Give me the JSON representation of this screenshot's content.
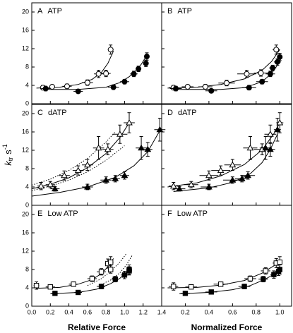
{
  "chart_data": [
    {
      "type": "scatter",
      "panel": "A",
      "title": "ATP",
      "xlim": [
        0,
        1.4
      ],
      "ylim": [
        0,
        22
      ],
      "yticks": [
        0,
        4,
        8,
        12,
        16,
        20
      ],
      "series": [
        {
          "marker": "circle",
          "filled": false,
          "x": [
            0.12,
            0.22,
            0.38,
            0.6,
            0.72,
            0.8,
            0.85
          ],
          "values": [
            3.5,
            3.7,
            3.8,
            4.6,
            6.5,
            6.6,
            11.8
          ],
          "xerr": [
            0.03,
            0.03,
            0.05,
            0.06,
            0.05,
            0.05,
            0.03
          ],
          "yerr": [
            0.5,
            0.4,
            0.5,
            0.6,
            0.8,
            0.7,
            1.0
          ]
        },
        {
          "marker": "circle",
          "filled": true,
          "x": [
            0.15,
            0.5,
            0.88,
            1.0,
            1.1,
            1.15,
            1.23,
            1.24
          ],
          "values": [
            3.3,
            2.7,
            3.6,
            4.8,
            6.5,
            7.6,
            8.8,
            10.3
          ],
          "xerr": [
            0.05,
            0.05,
            0.06,
            0.05,
            0.04,
            0.03,
            0.03,
            0.03
          ],
          "yerr": [
            0.5,
            0.4,
            0.5,
            0.5,
            0.6,
            0.6,
            0.7,
            0.8
          ]
        }
      ],
      "fits": [
        {
          "style": "solid",
          "x": [
            0.05,
            0.3,
            0.5,
            0.65,
            0.75,
            0.82,
            0.88
          ],
          "values": [
            3.4,
            3.6,
            4.2,
            5.3,
            6.8,
            8.8,
            11.5
          ]
        },
        {
          "style": "solid",
          "x": [
            0.1,
            0.5,
            0.8,
            0.95,
            1.05,
            1.12,
            1.18,
            1.24
          ],
          "values": [
            3.1,
            3.1,
            3.6,
            4.6,
            5.9,
            7.2,
            8.6,
            10.6
          ]
        }
      ]
    },
    {
      "type": "scatter",
      "panel": "B",
      "title": "ATP",
      "xlim": [
        0,
        1.1
      ],
      "ylim": [
        0,
        22
      ],
      "series": [
        {
          "marker": "circle",
          "filled": false,
          "x": [
            0.1,
            0.22,
            0.37,
            0.55,
            0.72,
            0.84,
            0.97
          ],
          "values": [
            3.5,
            3.7,
            3.7,
            4.5,
            6.5,
            6.7,
            11.8
          ],
          "xerr": [
            0.04,
            0.05,
            0.06,
            0.07,
            0.08,
            0.06,
            0.03
          ],
          "yerr": [
            0.5,
            0.4,
            0.5,
            0.6,
            0.8,
            0.7,
            1.0
          ]
        },
        {
          "marker": "circle",
          "filled": true,
          "x": [
            0.12,
            0.42,
            0.74,
            0.85,
            0.92,
            0.94,
            0.98,
            1.0
          ],
          "values": [
            3.3,
            2.8,
            3.5,
            4.8,
            6.5,
            7.8,
            9.1,
            10.2
          ],
          "xerr": [
            0.05,
            0.05,
            0.06,
            0.05,
            0.04,
            0.03,
            0.03,
            0.02
          ],
          "yerr": [
            0.5,
            0.4,
            0.5,
            0.5,
            0.6,
            0.6,
            0.7,
            0.8
          ]
        }
      ],
      "fits": [
        {
          "style": "solid",
          "x": [
            0.05,
            0.3,
            0.5,
            0.7,
            0.85,
            0.93,
            1.0
          ],
          "values": [
            3.4,
            3.6,
            4.2,
            5.4,
            7.3,
            9.2,
            11.8
          ]
        },
        {
          "style": "solid",
          "x": [
            0.1,
            0.5,
            0.7,
            0.85,
            0.93,
            0.98,
            1.02
          ],
          "values": [
            3.1,
            3.1,
            3.5,
            4.8,
            6.6,
            8.4,
            10.3
          ]
        }
      ]
    },
    {
      "type": "scatter",
      "panel": "C",
      "title": "dATP",
      "xlim": [
        0,
        1.4
      ],
      "ylim": [
        0,
        22
      ],
      "yticks": [
        0,
        4,
        8,
        12,
        16,
        20
      ],
      "ylabel": {
        "symbol": "k",
        "subscript": "tr",
        "unit": "s",
        "superscript": "-1"
      },
      "series": [
        {
          "marker": "triangle",
          "filled": false,
          "x": [
            0.1,
            0.2,
            0.35,
            0.5,
            0.6,
            0.72,
            0.82,
            0.95,
            1.05
          ],
          "values": [
            4.2,
            4.5,
            6.5,
            7.6,
            8.8,
            12.5,
            12.2,
            15.5,
            18.0
          ],
          "xerr": [
            0.04,
            0.05,
            0.06,
            0.06,
            0.06,
            0.06,
            0.06,
            0.08,
            0.06
          ],
          "yerr": [
            0.8,
            0.7,
            1.0,
            1.0,
            1.2,
            2.5,
            1.2,
            2.0,
            2.2
          ]
        },
        {
          "marker": "triangle",
          "filled": true,
          "x": [
            0.25,
            0.6,
            0.8,
            0.9,
            1.0,
            1.18,
            1.25,
            1.38
          ],
          "values": [
            3.6,
            4.0,
            5.5,
            5.8,
            6.5,
            12.5,
            12.2,
            16.5
          ],
          "xerr": [
            0.05,
            0.06,
            0.06,
            0.05,
            0.05,
            0.06,
            0.05,
            0.06
          ],
          "yerr": [
            0.5,
            0.6,
            0.7,
            0.7,
            0.8,
            2.5,
            1.5,
            2.5
          ]
        }
      ],
      "fits": [
        {
          "style": "solid",
          "x": [
            0,
            0.2,
            0.4,
            0.6,
            0.8,
            0.95,
            1.05
          ],
          "values": [
            3.6,
            4.6,
            6.0,
            8.2,
            11.3,
            14.8,
            18.0
          ]
        },
        {
          "style": "solid",
          "x": [
            0,
            0.3,
            0.6,
            0.9,
            1.1,
            1.25,
            1.38
          ],
          "values": [
            2.0,
            2.8,
            4.0,
            6.1,
            8.6,
            11.7,
            16.3
          ]
        },
        {
          "style": "dotted",
          "x": [
            0,
            0.2,
            0.4,
            0.6,
            0.8,
            0.9
          ],
          "values": [
            4.4,
            5.7,
            7.6,
            10.2,
            13.8,
            16.0
          ]
        },
        {
          "style": "dotted",
          "x": [
            0,
            0.2,
            0.4,
            0.6,
            0.8,
            1.0
          ],
          "values": [
            3.2,
            4.2,
            5.5,
            7.3,
            9.8,
            13.0
          ]
        }
      ]
    },
    {
      "type": "scatter",
      "panel": "D",
      "title": "dATP",
      "xlim": [
        0,
        1.1
      ],
      "ylim": [
        0,
        22
      ],
      "series": [
        {
          "marker": "triangle",
          "filled": false,
          "x": [
            0.1,
            0.25,
            0.4,
            0.5,
            0.6,
            0.75,
            0.85,
            0.92,
            1.0
          ],
          "values": [
            4.2,
            4.5,
            6.5,
            7.6,
            8.8,
            12.5,
            12.2,
            15.5,
            18.0
          ],
          "xerr": [
            0.04,
            0.06,
            0.08,
            0.08,
            0.07,
            0.06,
            0.07,
            0.05,
            0.03
          ],
          "yerr": [
            0.8,
            0.7,
            1.0,
            1.0,
            1.2,
            2.5,
            1.2,
            2.0,
            2.2
          ]
        },
        {
          "marker": "triangle",
          "filled": true,
          "x": [
            0.15,
            0.4,
            0.6,
            0.68,
            0.73,
            0.88,
            0.92,
            0.98
          ],
          "values": [
            3.6,
            4.0,
            5.5,
            5.8,
            6.5,
            12.5,
            12.2,
            16.5
          ],
          "xerr": [
            0.05,
            0.07,
            0.08,
            0.06,
            0.06,
            0.05,
            0.04,
            0.03
          ],
          "yerr": [
            0.5,
            0.6,
            0.7,
            0.7,
            0.8,
            2.5,
            1.5,
            2.5
          ]
        }
      ],
      "fits": [
        {
          "style": "solid",
          "x": [
            0.05,
            0.3,
            0.5,
            0.7,
            0.85,
            0.95,
            1.0
          ],
          "values": [
            4.0,
            4.9,
            6.4,
            8.9,
            12.1,
            15.6,
            18.0
          ]
        },
        {
          "style": "solid",
          "x": [
            0.1,
            0.4,
            0.6,
            0.75,
            0.85,
            0.92,
            0.98
          ],
          "values": [
            3.0,
            3.8,
            5.0,
            6.9,
            9.3,
            12.2,
            15.5
          ]
        }
      ]
    },
    {
      "type": "scatter",
      "panel": "E",
      "title": "Low ATP",
      "xlim": [
        0,
        1.4
      ],
      "ylim": [
        0,
        22
      ],
      "yticks": [
        0,
        4,
        8,
        12,
        16,
        20
      ],
      "xticks": [
        {
          "value": 0,
          "label": "0.0"
        },
        0.2,
        0.4,
        0.6,
        0.8,
        {
          "value": 1,
          "label": "1.0"
        },
        1.2,
        1.4
      ],
      "xlabel": "Relative Force",
      "series": [
        {
          "marker": "square",
          "filled": false,
          "x": [
            0.05,
            0.2,
            0.45,
            0.65,
            0.75,
            0.82,
            0.85,
            0.85
          ],
          "values": [
            4.5,
            4.2,
            4.8,
            6.0,
            7.5,
            9.3,
            9.6,
            8.0
          ],
          "xerr": [
            0.03,
            0.05,
            0.05,
            0.05,
            0.05,
            0.03,
            0.03,
            0.03
          ],
          "yerr": [
            0.8,
            0.4,
            0.5,
            0.6,
            0.7,
            1.0,
            1.2,
            0.8
          ]
        },
        {
          "marker": "square",
          "filled": true,
          "x": [
            0.25,
            0.5,
            0.75,
            0.9,
            1.0,
            1.05,
            1.05
          ],
          "values": [
            2.8,
            3.0,
            4.3,
            5.9,
            6.8,
            7.7,
            8.0
          ],
          "xerr": [
            0.04,
            0.04,
            0.04,
            0.04,
            0.04,
            0.03,
            0.03
          ],
          "yerr": [
            0.4,
            0.4,
            0.5,
            0.6,
            0.8,
            0.9,
            1.0
          ]
        }
      ],
      "fits": [
        {
          "style": "solid",
          "x": [
            0.05,
            0.3,
            0.5,
            0.65,
            0.75,
            0.82,
            0.88
          ],
          "values": [
            3.9,
            4.1,
            4.8,
            5.8,
            7.1,
            8.6,
            10.4
          ]
        },
        {
          "style": "solid",
          "x": [
            0.2,
            0.5,
            0.7,
            0.85,
            0.95,
            1.02,
            1.06
          ],
          "values": [
            2.7,
            3.0,
            3.7,
            4.9,
            6.1,
            7.4,
            8.4
          ]
        },
        {
          "style": "dotted",
          "x": [
            0.6,
            0.75,
            0.85,
            0.95,
            1.02
          ],
          "values": [
            4.5,
            6.0,
            7.6,
            9.6,
            11.5
          ]
        },
        {
          "style": "dotted",
          "x": [
            0.7,
            0.85,
            0.95,
            1.02,
            1.08
          ],
          "values": [
            4.3,
            5.7,
            7.3,
            9.0,
            11.0
          ]
        }
      ]
    },
    {
      "type": "scatter",
      "panel": "F",
      "title": "Low ATP",
      "xlim": [
        0,
        1.1
      ],
      "ylim": [
        0,
        22
      ],
      "xticks": [
        0.2,
        0.4,
        0.6,
        0.8,
        {
          "value": 1,
          "label": "1.0"
        }
      ],
      "xlabel": "Normalized Force",
      "series": [
        {
          "marker": "square",
          "filled": false,
          "x": [
            0.1,
            0.25,
            0.5,
            0.75,
            0.88,
            0.97,
            1.0
          ],
          "values": [
            4.3,
            4.2,
            4.8,
            6.0,
            7.7,
            9.4,
            9.6
          ],
          "xerr": [
            0.04,
            0.05,
            0.06,
            0.05,
            0.04,
            0.03,
            0.02
          ],
          "yerr": [
            0.8,
            0.4,
            0.5,
            0.6,
            0.7,
            1.0,
            1.2
          ]
        },
        {
          "marker": "square",
          "filled": true,
          "x": [
            0.2,
            0.42,
            0.7,
            0.86,
            0.95,
            0.99,
            1.0
          ],
          "values": [
            2.8,
            3.1,
            4.3,
            5.9,
            6.9,
            7.6,
            8.0
          ],
          "xerr": [
            0.04,
            0.05,
            0.05,
            0.04,
            0.03,
            0.03,
            0.02
          ],
          "yerr": [
            0.4,
            0.4,
            0.5,
            0.6,
            0.8,
            0.9,
            1.0
          ]
        }
      ],
      "fits": [
        {
          "style": "solid",
          "x": [
            0.05,
            0.3,
            0.5,
            0.7,
            0.85,
            0.95,
            1.0
          ],
          "values": [
            4.0,
            4.1,
            4.6,
            5.6,
            7.2,
            8.8,
            9.9
          ]
        },
        {
          "style": "solid",
          "x": [
            0.15,
            0.4,
            0.6,
            0.75,
            0.88,
            0.95,
            1.0
          ],
          "values": [
            2.7,
            3.0,
            3.6,
            4.5,
            5.9,
            7.0,
            8.0
          ]
        }
      ]
    }
  ]
}
